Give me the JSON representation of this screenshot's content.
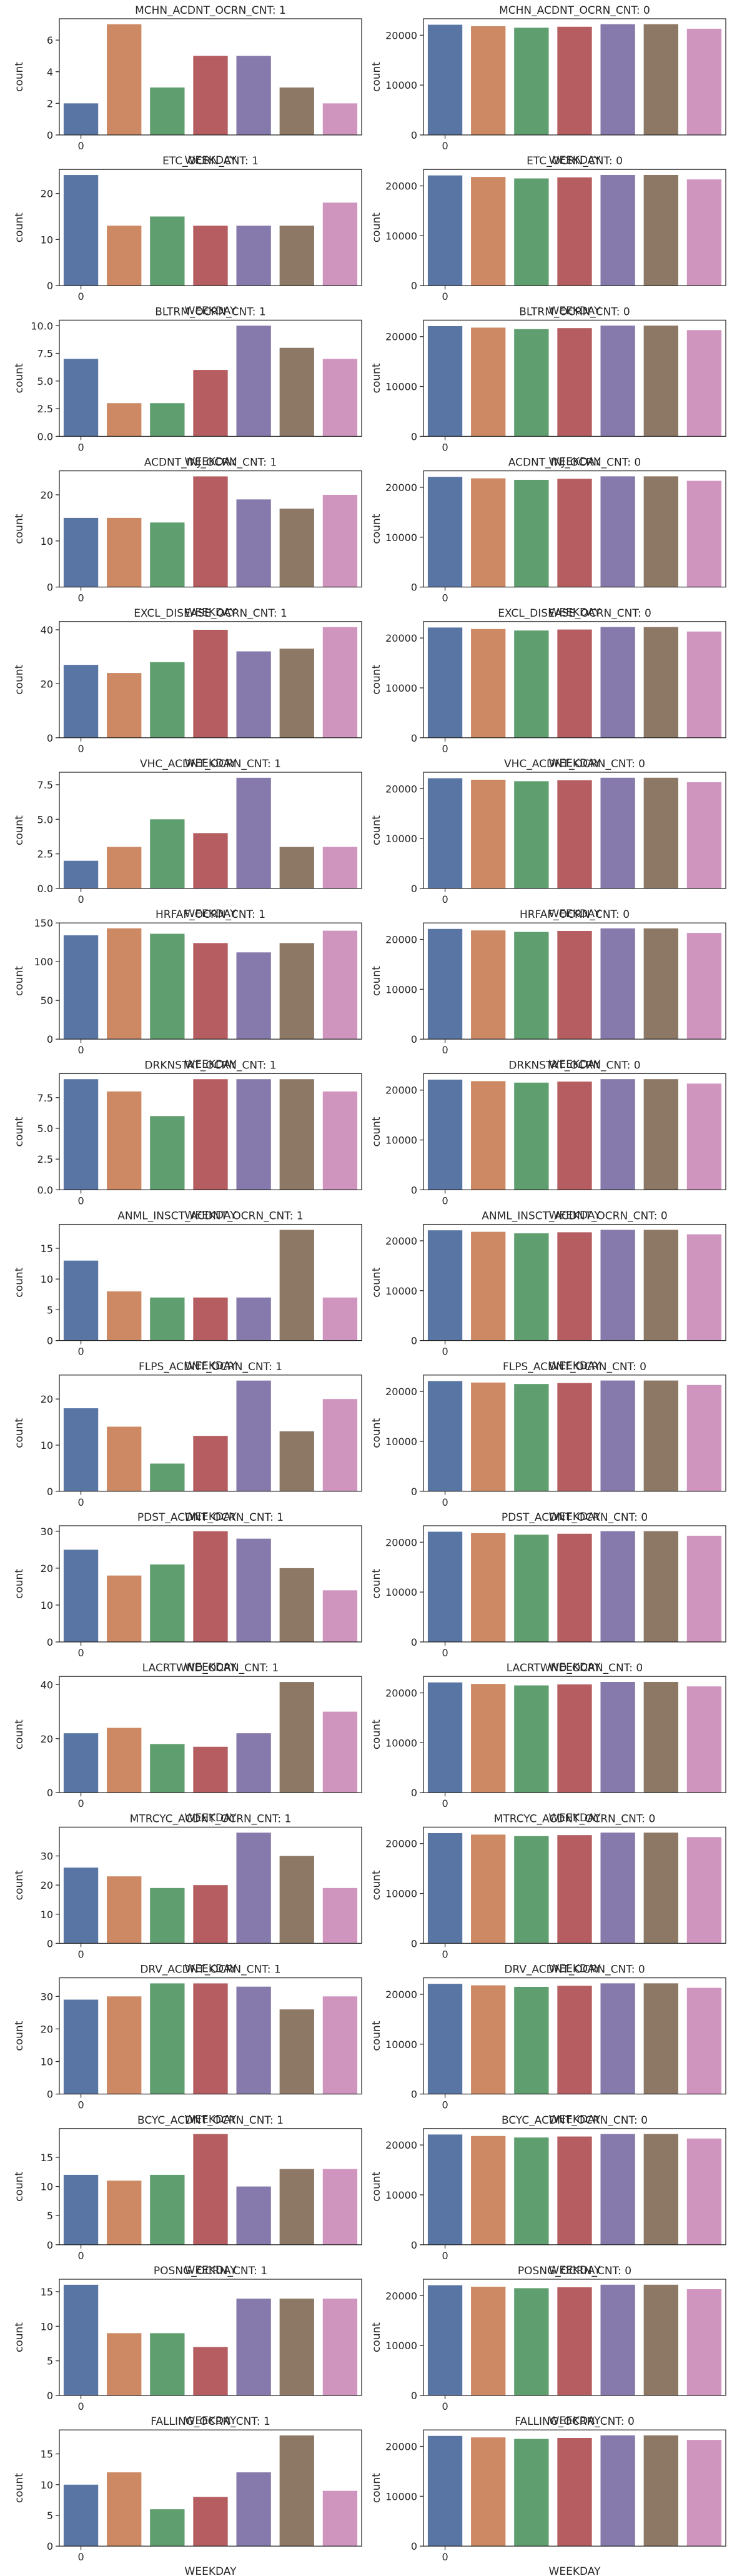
{
  "chart_data": [
    {
      "type": "bar",
      "title": "MCHN_ACDNT_OCRN_CNT: 1",
      "xlabel": "WEEKDAY",
      "ylabel": "count",
      "xticks": [
        "0"
      ],
      "ylim": [
        0,
        7.35
      ],
      "yticks": [
        0,
        2,
        4,
        6
      ],
      "yticklabels": [
        "0",
        "2",
        "4",
        "6"
      ],
      "values": [
        2,
        7,
        3,
        5,
        5,
        3,
        2
      ]
    },
    {
      "type": "bar",
      "title": "MCHN_ACDNT_OCRN_CNT: 0",
      "xlabel": "WEEKDAY",
      "ylabel": "count",
      "xticks": [
        "0"
      ],
      "ylim": [
        0,
        23300
      ],
      "yticks": [
        0,
        10000,
        20000
      ],
      "yticklabels": [
        "0",
        "10000",
        "20000"
      ],
      "values": [
        22100,
        21800,
        21500,
        21700,
        22200,
        22200,
        21300
      ]
    },
    {
      "type": "bar",
      "title": "ETC_OCRN_CNT: 1",
      "xlabel": "WEEKDAY",
      "ylabel": "count",
      "xticks": [
        "0"
      ],
      "ylim": [
        0,
        25.2
      ],
      "yticks": [
        0,
        10,
        20
      ],
      "yticklabels": [
        "0",
        "10",
        "20"
      ],
      "values": [
        24,
        13,
        15,
        13,
        13,
        13,
        18
      ]
    },
    {
      "type": "bar",
      "title": "ETC_OCRN_CNT: 0",
      "xlabel": "WEEKDAY",
      "ylabel": "count",
      "xticks": [
        "0"
      ],
      "ylim": [
        0,
        23300
      ],
      "yticks": [
        0,
        10000,
        20000
      ],
      "yticklabels": [
        "0",
        "10000",
        "20000"
      ],
      "values": [
        22100,
        21800,
        21500,
        21700,
        22200,
        22200,
        21300
      ]
    },
    {
      "type": "bar",
      "title": "BLTRM_OCRN_CNT: 1",
      "xlabel": "WEEKDAY",
      "ylabel": "count",
      "xticks": [
        "0"
      ],
      "ylim": [
        0,
        10.5
      ],
      "yticks": [
        0,
        2.5,
        5,
        7.5,
        10
      ],
      "yticklabels": [
        "0.0",
        "2.5",
        "5.0",
        "7.5",
        "10.0"
      ],
      "values": [
        7,
        3,
        3,
        6,
        10,
        8,
        7
      ]
    },
    {
      "type": "bar",
      "title": "BLTRM_OCRN_CNT: 0",
      "xlabel": "WEEKDAY",
      "ylabel": "count",
      "xticks": [
        "0"
      ],
      "ylim": [
        0,
        23300
      ],
      "yticks": [
        0,
        10000,
        20000
      ],
      "yticklabels": [
        "0",
        "10000",
        "20000"
      ],
      "values": [
        22100,
        21800,
        21500,
        21700,
        22200,
        22200,
        21300
      ]
    },
    {
      "type": "bar",
      "title": "ACDNT_INJ_OCRN_CNT: 1",
      "xlabel": "WEEKDAY",
      "ylabel": "count",
      "xticks": [
        "0"
      ],
      "ylim": [
        0,
        25.2
      ],
      "yticks": [
        0,
        10,
        20
      ],
      "yticklabels": [
        "0",
        "10",
        "20"
      ],
      "values": [
        15,
        15,
        14,
        24,
        19,
        17,
        20
      ]
    },
    {
      "type": "bar",
      "title": "ACDNT_INJ_OCRN_CNT: 0",
      "xlabel": "WEEKDAY",
      "ylabel": "count",
      "xticks": [
        "0"
      ],
      "ylim": [
        0,
        23300
      ],
      "yticks": [
        0,
        10000,
        20000
      ],
      "yticklabels": [
        "0",
        "10000",
        "20000"
      ],
      "values": [
        22100,
        21800,
        21500,
        21700,
        22200,
        22200,
        21300
      ]
    },
    {
      "type": "bar",
      "title": "EXCL_DISEASE_OCRN_CNT: 1",
      "xlabel": "WEEKDAY",
      "ylabel": "count",
      "xticks": [
        "0"
      ],
      "ylim": [
        0,
        43.05
      ],
      "yticks": [
        0,
        20,
        40
      ],
      "yticklabels": [
        "0",
        "20",
        "40"
      ],
      "values": [
        27,
        24,
        28,
        40,
        32,
        33,
        41
      ]
    },
    {
      "type": "bar",
      "title": "EXCL_DISEASE_OCRN_CNT: 0",
      "xlabel": "WEEKDAY",
      "ylabel": "count",
      "xticks": [
        "0"
      ],
      "ylim": [
        0,
        23300
      ],
      "yticks": [
        0,
        10000,
        20000
      ],
      "yticklabels": [
        "0",
        "10000",
        "20000"
      ],
      "values": [
        22100,
        21800,
        21500,
        21700,
        22200,
        22200,
        21300
      ]
    },
    {
      "type": "bar",
      "title": "VHC_ACDNT_OCRN_CNT: 1",
      "xlabel": "WEEKDAY",
      "ylabel": "count",
      "xticks": [
        "0"
      ],
      "ylim": [
        0,
        8.4
      ],
      "yticks": [
        0,
        2.5,
        5,
        7.5
      ],
      "yticklabels": [
        "0.0",
        "2.5",
        "5.0",
        "7.5"
      ],
      "values": [
        2,
        3,
        5,
        4,
        8,
        3,
        3
      ]
    },
    {
      "type": "bar",
      "title": "VHC_ACDNT_OCRN_CNT: 0",
      "xlabel": "WEEKDAY",
      "ylabel": "count",
      "xticks": [
        "0"
      ],
      "ylim": [
        0,
        23300
      ],
      "yticks": [
        0,
        10000,
        20000
      ],
      "yticklabels": [
        "0",
        "10000",
        "20000"
      ],
      "values": [
        22100,
        21800,
        21500,
        21700,
        22200,
        22200,
        21300
      ]
    },
    {
      "type": "bar",
      "title": "HRFAF_OCRN_CNT: 1",
      "xlabel": "WEEKDAY",
      "ylabel": "count",
      "xticks": [
        "0"
      ],
      "ylim": [
        0,
        150
      ],
      "yticks": [
        0,
        50,
        100,
        150
      ],
      "yticklabels": [
        "0",
        "50",
        "100",
        "150"
      ],
      "values": [
        134,
        143,
        136,
        124,
        112,
        124,
        140
      ]
    },
    {
      "type": "bar",
      "title": "HRFAF_OCRN_CNT: 0",
      "xlabel": "WEEKDAY",
      "ylabel": "count",
      "xticks": [
        "0"
      ],
      "ylim": [
        0,
        23300
      ],
      "yticks": [
        0,
        10000,
        20000
      ],
      "yticklabels": [
        "0",
        "10000",
        "20000"
      ],
      "values": [
        22100,
        21800,
        21500,
        21700,
        22200,
        22200,
        21300
      ]
    },
    {
      "type": "bar",
      "title": "DRKNSTAT_OCRN_CNT: 1",
      "xlabel": "WEEKDAY",
      "ylabel": "count",
      "xticks": [
        "0"
      ],
      "ylim": [
        0,
        9.45
      ],
      "yticks": [
        0,
        2.5,
        5,
        7.5
      ],
      "yticklabels": [
        "0.0",
        "2.5",
        "5.0",
        "7.5"
      ],
      "values": [
        9,
        8,
        6,
        9,
        9,
        9,
        8
      ]
    },
    {
      "type": "bar",
      "title": "DRKNSTAT_OCRN_CNT: 0",
      "xlabel": "WEEKDAY",
      "ylabel": "count",
      "xticks": [
        "0"
      ],
      "ylim": [
        0,
        23300
      ],
      "yticks": [
        0,
        10000,
        20000
      ],
      "yticklabels": [
        "0",
        "10000",
        "20000"
      ],
      "values": [
        22100,
        21800,
        21500,
        21700,
        22200,
        22200,
        21300
      ]
    },
    {
      "type": "bar",
      "title": "ANML_INSCT_ACDNT_OCRN_CNT: 1",
      "xlabel": "WEEKDAY",
      "ylabel": "count",
      "xticks": [
        "0"
      ],
      "ylim": [
        0,
        18.9
      ],
      "yticks": [
        0,
        5,
        10,
        15
      ],
      "yticklabels": [
        "0",
        "5",
        "10",
        "15"
      ],
      "values": [
        13,
        8,
        7,
        7,
        7,
        18,
        7
      ]
    },
    {
      "type": "bar",
      "title": "ANML_INSCT_ACDNT_OCRN_CNT: 0",
      "xlabel": "WEEKDAY",
      "ylabel": "count",
      "xticks": [
        "0"
      ],
      "ylim": [
        0,
        23300
      ],
      "yticks": [
        0,
        10000,
        20000
      ],
      "yticklabels": [
        "0",
        "10000",
        "20000"
      ],
      "values": [
        22100,
        21800,
        21500,
        21700,
        22200,
        22200,
        21300
      ]
    },
    {
      "type": "bar",
      "title": "FLPS_ACDNT_OCRN_CNT: 1",
      "xlabel": "WEEKDAY",
      "ylabel": "count",
      "xticks": [
        "0"
      ],
      "ylim": [
        0,
        25.2
      ],
      "yticks": [
        0,
        10,
        20
      ],
      "yticklabels": [
        "0",
        "10",
        "20"
      ],
      "values": [
        18,
        14,
        6,
        12,
        24,
        13,
        20
      ]
    },
    {
      "type": "bar",
      "title": "FLPS_ACDNT_OCRN_CNT: 0",
      "xlabel": "WEEKDAY",
      "ylabel": "count",
      "xticks": [
        "0"
      ],
      "ylim": [
        0,
        23300
      ],
      "yticks": [
        0,
        10000,
        20000
      ],
      "yticklabels": [
        "0",
        "10000",
        "20000"
      ],
      "values": [
        22100,
        21800,
        21500,
        21700,
        22200,
        22200,
        21300
      ]
    },
    {
      "type": "bar",
      "title": "PDST_ACDNT_OCRN_CNT: 1",
      "xlabel": "WEEKDAY",
      "ylabel": "count",
      "xticks": [
        "0"
      ],
      "ylim": [
        0,
        31.5
      ],
      "yticks": [
        0,
        10,
        20,
        30
      ],
      "yticklabels": [
        "0",
        "10",
        "20",
        "30"
      ],
      "values": [
        25,
        18,
        21,
        30,
        28,
        20,
        14
      ]
    },
    {
      "type": "bar",
      "title": "PDST_ACDNT_OCRN_CNT: 0",
      "xlabel": "WEEKDAY",
      "ylabel": "count",
      "xticks": [
        "0"
      ],
      "ylim": [
        0,
        23300
      ],
      "yticks": [
        0,
        10000,
        20000
      ],
      "yticklabels": [
        "0",
        "10000",
        "20000"
      ],
      "values": [
        22100,
        21800,
        21500,
        21700,
        22200,
        22200,
        21300
      ]
    },
    {
      "type": "bar",
      "title": "LACRTWND_OCRN_CNT: 1",
      "xlabel": "WEEKDAY",
      "ylabel": "count",
      "xticks": [
        "0"
      ],
      "ylim": [
        0,
        43.05
      ],
      "yticks": [
        0,
        20,
        40
      ],
      "yticklabels": [
        "0",
        "20",
        "40"
      ],
      "values": [
        22,
        24,
        18,
        17,
        22,
        41,
        30
      ]
    },
    {
      "type": "bar",
      "title": "LACRTWND_OCRN_CNT: 0",
      "xlabel": "WEEKDAY",
      "ylabel": "count",
      "xticks": [
        "0"
      ],
      "ylim": [
        0,
        23300
      ],
      "yticks": [
        0,
        10000,
        20000
      ],
      "yticklabels": [
        "0",
        "10000",
        "20000"
      ],
      "values": [
        22100,
        21800,
        21500,
        21700,
        22200,
        22200,
        21300
      ]
    },
    {
      "type": "bar",
      "title": "MTRCYC_ACDNT_OCRN_CNT: 1",
      "xlabel": "WEEKDAY",
      "ylabel": "count",
      "xticks": [
        "0"
      ],
      "ylim": [
        0,
        39.9
      ],
      "yticks": [
        0,
        10,
        20,
        30
      ],
      "yticklabels": [
        "0",
        "10",
        "20",
        "30"
      ],
      "values": [
        26,
        23,
        19,
        20,
        38,
        30,
        19
      ]
    },
    {
      "type": "bar",
      "title": "MTRCYC_ACDNT_OCRN_CNT: 0",
      "xlabel": "WEEKDAY",
      "ylabel": "count",
      "xticks": [
        "0"
      ],
      "ylim": [
        0,
        23300
      ],
      "yticks": [
        0,
        10000,
        20000
      ],
      "yticklabels": [
        "0",
        "10000",
        "20000"
      ],
      "values": [
        22100,
        21800,
        21500,
        21700,
        22200,
        22200,
        21300
      ]
    },
    {
      "type": "bar",
      "title": "DRV_ACDNT_OCRN_CNT: 1",
      "xlabel": "WEEKDAY",
      "ylabel": "count",
      "xticks": [
        "0"
      ],
      "ylim": [
        0,
        35.7
      ],
      "yticks": [
        0,
        10,
        20,
        30
      ],
      "yticklabels": [
        "0",
        "10",
        "20",
        "30"
      ],
      "values": [
        29,
        30,
        34,
        34,
        33,
        26,
        30
      ]
    },
    {
      "type": "bar",
      "title": "DRV_ACDNT_OCRN_CNT: 0",
      "xlabel": "WEEKDAY",
      "ylabel": "count",
      "xticks": [
        "0"
      ],
      "ylim": [
        0,
        23300
      ],
      "yticks": [
        0,
        10000,
        20000
      ],
      "yticklabels": [
        "0",
        "10000",
        "20000"
      ],
      "values": [
        22100,
        21800,
        21500,
        21700,
        22200,
        22200,
        21300
      ]
    },
    {
      "type": "bar",
      "title": "BCYC_ACDNT_OCRN_CNT: 1",
      "xlabel": "WEEKDAY",
      "ylabel": "count",
      "xticks": [
        "0"
      ],
      "ylim": [
        0,
        19.95
      ],
      "yticks": [
        0,
        5,
        10,
        15
      ],
      "yticklabels": [
        "0",
        "5",
        "10",
        "15"
      ],
      "values": [
        12,
        11,
        12,
        19,
        10,
        13,
        13
      ]
    },
    {
      "type": "bar",
      "title": "BCYC_ACDNT_OCRN_CNT: 0",
      "xlabel": "WEEKDAY",
      "ylabel": "count",
      "xticks": [
        "0"
      ],
      "ylim": [
        0,
        23300
      ],
      "yticks": [
        0,
        10000,
        20000
      ],
      "yticklabels": [
        "0",
        "10000",
        "20000"
      ],
      "values": [
        22100,
        21800,
        21500,
        21700,
        22200,
        22200,
        21300
      ]
    },
    {
      "type": "bar",
      "title": "POSNG_OCRN_CNT: 1",
      "xlabel": "WEEKDAY",
      "ylabel": "count",
      "xticks": [
        "0"
      ],
      "ylim": [
        0,
        16.8
      ],
      "yticks": [
        0,
        5,
        10,
        15
      ],
      "yticklabels": [
        "0",
        "5",
        "10",
        "15"
      ],
      "values": [
        16,
        9,
        9,
        7,
        14,
        14,
        14
      ]
    },
    {
      "type": "bar",
      "title": "POSNG_OCRN_CNT: 0",
      "xlabel": "WEEKDAY",
      "ylabel": "count",
      "xticks": [
        "0"
      ],
      "ylim": [
        0,
        23300
      ],
      "yticks": [
        0,
        10000,
        20000
      ],
      "yticklabels": [
        "0",
        "10000",
        "20000"
      ],
      "values": [
        22100,
        21800,
        21500,
        21700,
        22200,
        22200,
        21300
      ]
    },
    {
      "type": "bar",
      "title": "FALLING_OCRN_CNT: 1",
      "xlabel": "WEEKDAY",
      "ylabel": "count",
      "xticks": [
        "0"
      ],
      "ylim": [
        0,
        18.9
      ],
      "yticks": [
        0,
        5,
        10,
        15
      ],
      "yticklabels": [
        "0",
        "5",
        "10",
        "15"
      ],
      "values": [
        10,
        12,
        6,
        8,
        12,
        18,
        9
      ]
    },
    {
      "type": "bar",
      "title": "FALLING_OCRN_CNT: 0",
      "xlabel": "WEEKDAY",
      "ylabel": "count",
      "xticks": [
        "0"
      ],
      "ylim": [
        0,
        23300
      ],
      "yticks": [
        0,
        10000,
        20000
      ],
      "yticklabels": [
        "0",
        "10000",
        "20000"
      ],
      "values": [
        22100,
        21800,
        21500,
        21700,
        22200,
        22200,
        21300
      ]
    }
  ],
  "palette": [
    "#5875a4",
    "#cc8963",
    "#5f9e6e",
    "#b55d60",
    "#857aab",
    "#8d7866",
    "#d095bf"
  ]
}
